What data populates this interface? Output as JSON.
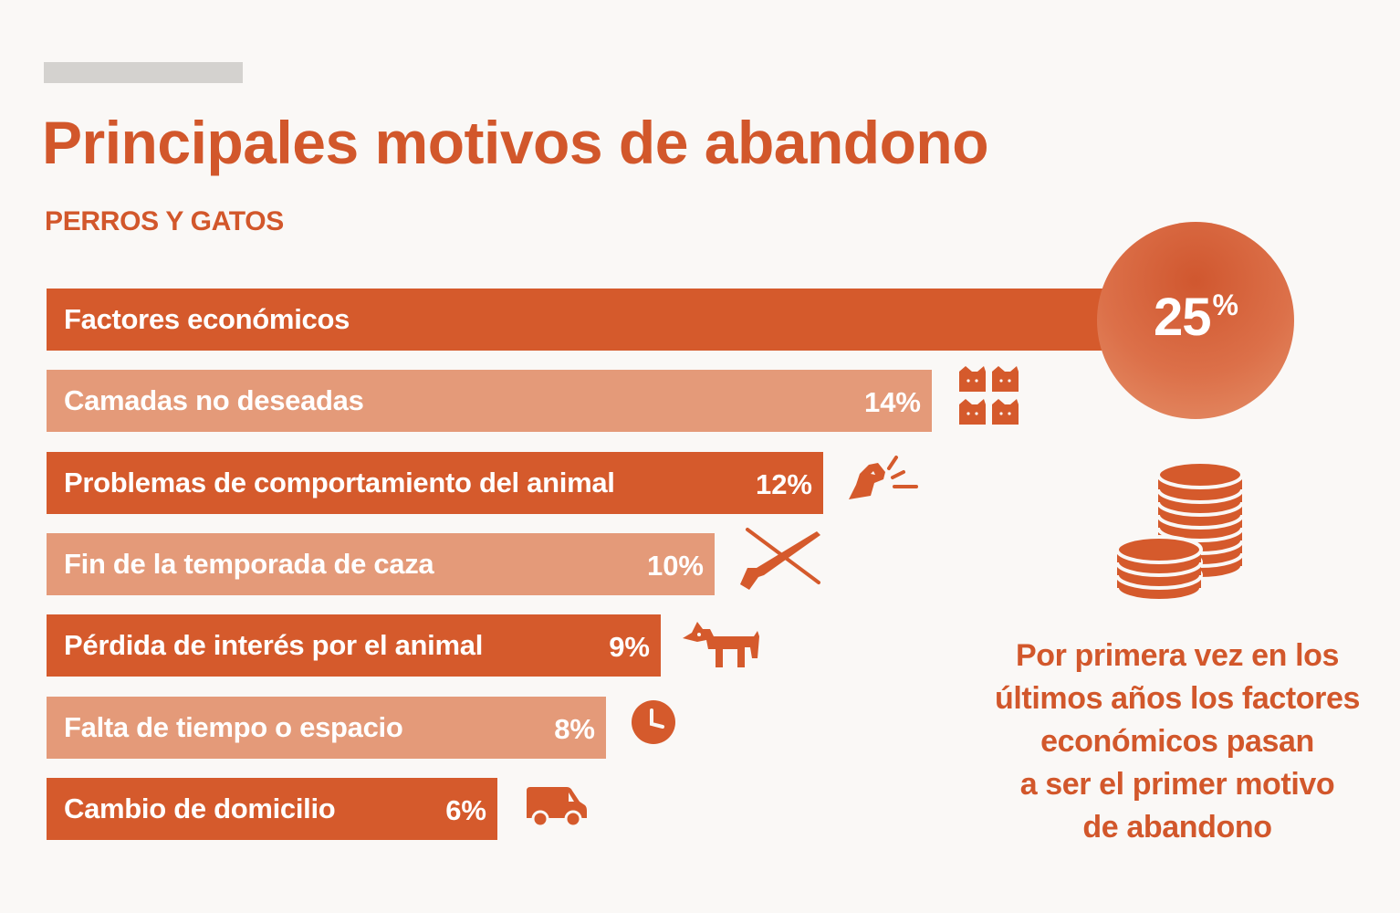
{
  "title": "Principales motivos de abandono",
  "subtitle": "PERROS Y GATOS",
  "colors": {
    "dark": "#d55a2c",
    "light": "#e49a79",
    "text": "#d2572b",
    "background": "#faf8f6"
  },
  "chart_data": {
    "type": "bar",
    "orientation": "horizontal",
    "title": "Principales motivos de abandono",
    "subtitle": "PERROS Y GATOS",
    "unit": "%",
    "categories": [
      "Factores económicos",
      "Camadas no deseadas",
      "Problemas de comportamiento del animal",
      "Fin de la temporada de caza",
      "Pérdida de interés por el animal",
      "Falta de tiempo o espacio",
      "Cambio de domicilio"
    ],
    "values": [
      25,
      14,
      12,
      10,
      9,
      8,
      6
    ],
    "value_labels": [
      "25",
      "14%",
      "12%",
      "10%",
      "9%",
      "8%",
      "6%"
    ],
    "icons": [
      "",
      "cats-icon",
      "barking-dog-icon",
      "crossed-shotgun-icon",
      "dog-icon",
      "clock-icon",
      "van-icon"
    ],
    "shades": [
      "dark",
      "light",
      "dark",
      "light",
      "dark",
      "light",
      "dark"
    ],
    "highlight": {
      "value_label": "25",
      "unit_label": "%"
    }
  },
  "note": {
    "lines": [
      "Por primera vez en los",
      "últimos años los factores",
      "económicos pasan",
      "a ser el primer motivo",
      "de abandono"
    ]
  },
  "note_icon": "coins-stack-icon"
}
